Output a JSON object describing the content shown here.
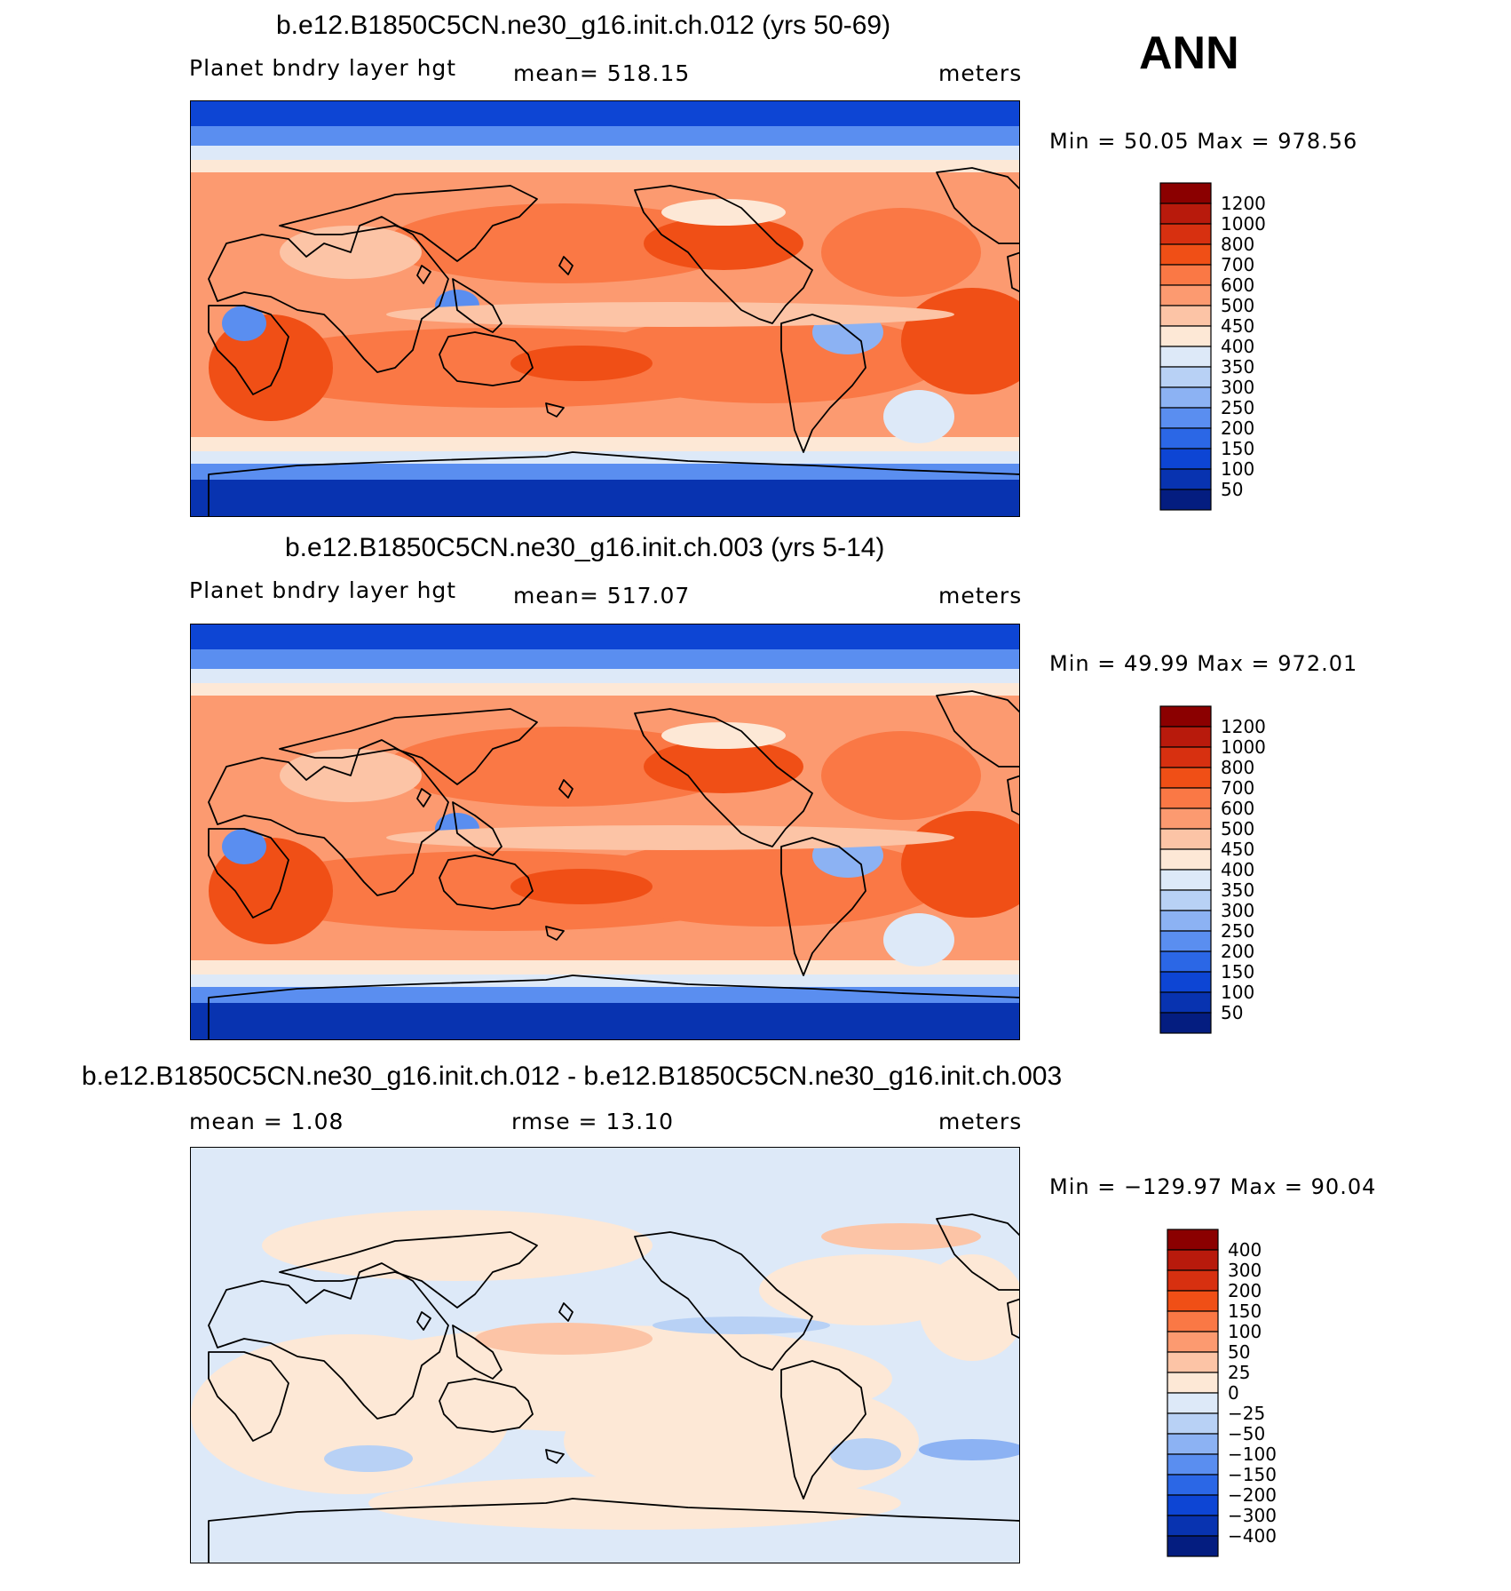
{
  "header": {
    "season": "ANN"
  },
  "panels": [
    {
      "title": "b.e12.B1850C5CN.ne30_g16.init.ch.012 (yrs 50-69)",
      "left_label": "Planet bndry layer hgt",
      "center_label": "mean=  518.15",
      "right_label": "meters",
      "minmax_label": "Min  =    50.05  Max  =  978.56"
    },
    {
      "title": "b.e12.B1850C5CN.ne30_g16.init.ch.003 (yrs 5-14)",
      "left_label": "Planet bndry layer hgt",
      "center_label": "mean=  517.07",
      "right_label": "meters",
      "minmax_label": "Min  =    49.99  Max  =  972.01"
    },
    {
      "title": "b.e12.B1850C5CN.ne30_g16.init.ch.012 - b.e12.B1850C5CN.ne30_g16.init.ch.003",
      "left_label": "mean  =      1.08",
      "center_label": "rmse  =     13.10",
      "right_label": "meters",
      "minmax_label": "Min  = −129.97  Max  =    90.04"
    }
  ],
  "chart_data": [
    {
      "type": "heatmap",
      "title": "b.e12.B1850C5CN.ne30_g16.init.ch.012 (yrs 50-69)",
      "variable": "Planet bndry layer hgt",
      "units": "meters",
      "mean": 518.15,
      "min": 50.05,
      "max": 978.56,
      "colorbar": {
        "levels": [
          "1200",
          "1000",
          "800",
          "700",
          "600",
          "500",
          "450",
          "400",
          "350",
          "300",
          "250",
          "200",
          "150",
          "100",
          "50"
        ],
        "colors": [
          "#8b0000",
          "#b81a0c",
          "#d73010",
          "#f04f16",
          "#fa7845",
          "#fc9a70",
          "#fcc4a6",
          "#fde8d6",
          "#dde9f8",
          "#b8d1f5",
          "#8cb2f3",
          "#5a8ef0",
          "#2b67e6",
          "#0d45d4",
          "#0833b0",
          "#041d80"
        ]
      }
    },
    {
      "type": "heatmap",
      "title": "b.e12.B1850C5CN.ne30_g16.init.ch.003 (yrs 5-14)",
      "variable": "Planet bndry layer hgt",
      "units": "meters",
      "mean": 517.07,
      "min": 49.99,
      "max": 972.01,
      "colorbar": {
        "levels": [
          "1200",
          "1000",
          "800",
          "700",
          "600",
          "500",
          "450",
          "400",
          "350",
          "300",
          "250",
          "200",
          "150",
          "100",
          "50"
        ],
        "colors": [
          "#8b0000",
          "#b81a0c",
          "#d73010",
          "#f04f16",
          "#fa7845",
          "#fc9a70",
          "#fcc4a6",
          "#fde8d6",
          "#dde9f8",
          "#b8d1f5",
          "#8cb2f3",
          "#5a8ef0",
          "#2b67e6",
          "#0d45d4",
          "#0833b0",
          "#041d80"
        ]
      }
    },
    {
      "type": "heatmap",
      "title": "b.e12.B1850C5CN.ne30_g16.init.ch.012 - b.e12.B1850C5CN.ne30_g16.init.ch.003",
      "units": "meters",
      "mean": 1.08,
      "rmse": 13.1,
      "min": -129.97,
      "max": 90.04,
      "colorbar": {
        "levels": [
          "400",
          "300",
          "200",
          "150",
          "100",
          "50",
          "25",
          "0",
          "−25",
          "−50",
          "−100",
          "−150",
          "−200",
          "−300",
          "−400"
        ],
        "colors": [
          "#8b0000",
          "#b81a0c",
          "#d73010",
          "#f04f16",
          "#fa7845",
          "#fc9a70",
          "#fcc4a6",
          "#fde8d6",
          "#dde9f8",
          "#b8d1f5",
          "#8cb2f3",
          "#5a8ef0",
          "#2b67e6",
          "#0d45d4",
          "#0833b0",
          "#041d80"
        ]
      }
    }
  ]
}
